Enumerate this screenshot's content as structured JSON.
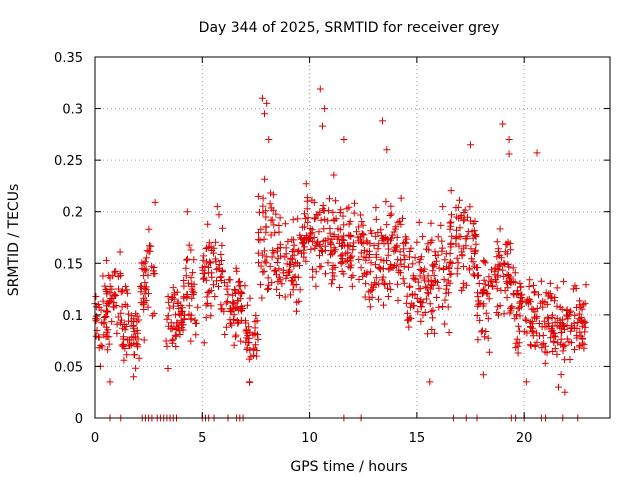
{
  "chart_data": {
    "type": "scatter",
    "title": "Day 344 of 2025, SRMTID for receiver grey",
    "xlabel": "GPS time / hours",
    "ylabel": "SRMTID / TECUs",
    "xlim": [
      0,
      24
    ],
    "ylim": [
      0,
      0.35
    ],
    "x_ticks": [
      0,
      5,
      10,
      15,
      20
    ],
    "x_tick_labels": [
      "0",
      "5",
      "10",
      "15",
      "20"
    ],
    "y_ticks": [
      0,
      0.05,
      0.1,
      0.15,
      0.2,
      0.25,
      0.3,
      0.35
    ],
    "y_tick_labels": [
      "0",
      "0.05",
      "0.1",
      "0.15",
      "0.2",
      "0.25",
      "0.3",
      "0.35"
    ],
    "grid": true,
    "marker": "plus",
    "color": "#dd0000",
    "series": [
      {
        "name": "SRMTID",
        "segments": [
          {
            "t_start": 0.0,
            "t_end": 0.6,
            "center": 0.095,
            "spread": 0.03
          },
          {
            "t_start": 0.5,
            "t_end": 1.3,
            "center": 0.11,
            "spread": 0.035
          },
          {
            "t_start": 1.3,
            "t_end": 2.1,
            "center": 0.085,
            "spread": 0.03
          },
          {
            "t_start": 2.1,
            "t_end": 2.8,
            "center": 0.13,
            "spread": 0.04
          },
          {
            "t_start": 3.3,
            "t_end": 4.1,
            "center": 0.095,
            "spread": 0.03
          },
          {
            "t_start": 4.1,
            "t_end": 4.8,
            "center": 0.12,
            "spread": 0.035
          },
          {
            "t_start": 5.0,
            "t_end": 6.0,
            "center": 0.14,
            "spread": 0.04
          },
          {
            "t_start": 6.0,
            "t_end": 7.0,
            "center": 0.11,
            "spread": 0.03
          },
          {
            "t_start": 7.0,
            "t_end": 7.6,
            "center": 0.08,
            "spread": 0.03
          },
          {
            "t_start": 7.6,
            "t_end": 8.4,
            "center": 0.17,
            "spread": 0.05
          },
          {
            "t_start": 8.4,
            "t_end": 9.5,
            "center": 0.15,
            "spread": 0.035
          },
          {
            "t_start": 9.5,
            "t_end": 10.5,
            "center": 0.17,
            "spread": 0.04
          },
          {
            "t_start": 10.5,
            "t_end": 11.5,
            "center": 0.165,
            "spread": 0.045
          },
          {
            "t_start": 11.5,
            "t_end": 12.5,
            "center": 0.17,
            "spread": 0.035
          },
          {
            "t_start": 12.5,
            "t_end": 13.5,
            "center": 0.15,
            "spread": 0.04
          },
          {
            "t_start": 13.5,
            "t_end": 14.5,
            "center": 0.16,
            "spread": 0.04
          },
          {
            "t_start": 14.5,
            "t_end": 15.5,
            "center": 0.13,
            "spread": 0.035
          },
          {
            "t_start": 15.5,
            "t_end": 16.5,
            "center": 0.14,
            "spread": 0.04
          },
          {
            "t_start": 16.5,
            "t_end": 17.8,
            "center": 0.17,
            "spread": 0.04
          },
          {
            "t_start": 17.8,
            "t_end": 18.5,
            "center": 0.11,
            "spread": 0.04
          },
          {
            "t_start": 18.5,
            "t_end": 19.6,
            "center": 0.14,
            "spread": 0.04
          },
          {
            "t_start": 19.6,
            "t_end": 20.3,
            "center": 0.1,
            "spread": 0.035
          },
          {
            "t_start": 20.3,
            "t_end": 21.5,
            "center": 0.095,
            "spread": 0.03
          },
          {
            "t_start": 21.5,
            "t_end": 22.9,
            "center": 0.09,
            "spread": 0.03
          }
        ],
        "peaks": [
          {
            "x": 7.8,
            "y": 0.31
          },
          {
            "x": 7.9,
            "y": 0.295
          },
          {
            "x": 8.0,
            "y": 0.305
          },
          {
            "x": 8.1,
            "y": 0.27
          },
          {
            "x": 10.5,
            "y": 0.319
          },
          {
            "x": 10.7,
            "y": 0.3
          },
          {
            "x": 10.6,
            "y": 0.283
          },
          {
            "x": 11.6,
            "y": 0.27
          },
          {
            "x": 13.4,
            "y": 0.288
          },
          {
            "x": 13.6,
            "y": 0.26
          },
          {
            "x": 17.5,
            "y": 0.265
          },
          {
            "x": 19.0,
            "y": 0.285
          },
          {
            "x": 19.3,
            "y": 0.27
          },
          {
            "x": 20.6,
            "y": 0.257
          },
          {
            "x": 2.8,
            "y": 0.209
          },
          {
            "x": 5.7,
            "y": 0.205
          },
          {
            "x": 4.3,
            "y": 0.2
          },
          {
            "x": 19.3,
            "y": 0.256
          }
        ],
        "lows": [
          {
            "x": 0.7,
            "y": 0.035
          },
          {
            "x": 1.8,
            "y": 0.04
          },
          {
            "x": 3.4,
            "y": 0.048
          },
          {
            "x": 7.2,
            "y": 0.035
          },
          {
            "x": 15.6,
            "y": 0.035
          },
          {
            "x": 18.1,
            "y": 0.042
          },
          {
            "x": 20.1,
            "y": 0.035
          },
          {
            "x": 21.6,
            "y": 0.03
          },
          {
            "x": 21.9,
            "y": 0.025
          }
        ],
        "zero_values": [
          0.7,
          1.2,
          2.2,
          2.35,
          2.5,
          2.65,
          2.9,
          3.05,
          3.2,
          3.35,
          3.5,
          3.65,
          3.8,
          5.0,
          5.15,
          5.3,
          5.55,
          6.2,
          6.6,
          6.75,
          6.9,
          11.6,
          12.4,
          16.7,
          17.3,
          17.8,
          19.4,
          19.6,
          20.0,
          20.8,
          21.0,
          21.8,
          22.5
        ]
      }
    ]
  }
}
